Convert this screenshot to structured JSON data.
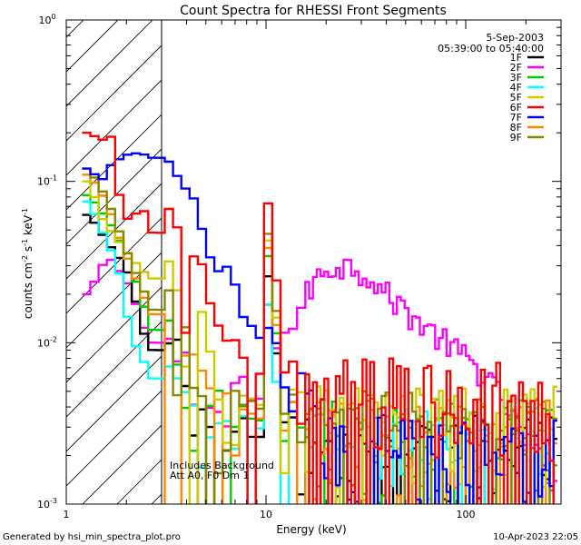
{
  "chart_data": {
    "type": "line",
    "title": "Count Spectra for RHESSI Front Segments",
    "xlabel": "Energy (keV)",
    "ylabel_parts": {
      "pre": "counts cm",
      "e1": "-2",
      "mid1": " s",
      "e2": "-1",
      "mid2": " keV",
      "e3": "-1"
    },
    "xscale": "log",
    "yscale": "log",
    "xlim": [
      1,
      300
    ],
    "ylim": [
      0.001,
      1
    ],
    "x_ticks": [
      {
        "value": 1,
        "label": "1"
      },
      {
        "value": 10,
        "label": "10"
      },
      {
        "value": 100,
        "label": "100"
      }
    ],
    "y_ticks": [
      {
        "value": 0.001,
        "mant": "10",
        "exp": "-3"
      },
      {
        "value": 0.01,
        "mant": "10",
        "exp": "-2"
      },
      {
        "value": 0.1,
        "mant": "10",
        "exp": "-1"
      },
      {
        "value": 1,
        "mant": "10",
        "exp": "0"
      }
    ],
    "hatched_region": [
      1,
      3
    ],
    "date": "5-Sep-2003",
    "time_range": "05:39:00 to 05:40:00",
    "annotations": [
      "Includes Background",
      "Att A0, F0 Dm 1"
    ],
    "series": [
      {
        "name": "1F",
        "color": "#000000",
        "low": [
          [
            1.3,
            0.062
          ],
          [
            1.5,
            0.048
          ],
          [
            1.7,
            0.038
          ],
          [
            1.9,
            0.032
          ],
          [
            2.1,
            0.025
          ],
          [
            2.4,
            0.012
          ],
          [
            2.7,
            0.009
          ]
        ],
        "noise_base": 0.002,
        "noise_floor": 0.0008
      },
      {
        "name": "2F",
        "color": "#ff00ff",
        "low": [
          [
            1.3,
            0.02
          ],
          [
            1.5,
            0.03
          ],
          [
            1.7,
            0.033
          ],
          [
            1.9,
            0.026
          ],
          [
            2.1,
            0.022
          ],
          [
            2.4,
            0.013
          ],
          [
            2.7,
            0.01
          ]
        ],
        "noise_base": 0.0035,
        "noise_floor": 0.0013
      },
      {
        "name": "3F",
        "color": "#00cc00",
        "low": [
          [
            1.3,
            0.082
          ],
          [
            1.5,
            0.065
          ],
          [
            1.7,
            0.052
          ],
          [
            1.9,
            0.04
          ],
          [
            2.1,
            0.03
          ],
          [
            2.4,
            0.018
          ],
          [
            2.7,
            0.012
          ]
        ],
        "noise_base": 0.0025,
        "noise_floor": 0.0009
      },
      {
        "name": "4F",
        "color": "#00ffff",
        "low": [
          [
            1.3,
            0.075
          ],
          [
            1.5,
            0.05
          ],
          [
            1.7,
            0.036
          ],
          [
            1.9,
            0.024
          ],
          [
            2.1,
            0.011
          ],
          [
            2.4,
            0.008
          ],
          [
            2.7,
            0.006
          ]
        ],
        "noise_base": 0.0022,
        "noise_floor": 0.0009
      },
      {
        "name": "5F",
        "color": "#cccc00",
        "low": [
          [
            1.3,
            0.1
          ],
          [
            1.5,
            0.06
          ],
          [
            1.7,
            0.048
          ],
          [
            1.9,
            0.04
          ],
          [
            2.1,
            0.034
          ],
          [
            2.4,
            0.028
          ],
          [
            2.7,
            0.025
          ]
        ],
        "noise_base": 0.003,
        "noise_floor": 0.001
      },
      {
        "name": "6F",
        "color": "#ff0000",
        "low": [
          [
            1.3,
            0.2
          ],
          [
            1.5,
            0.18
          ],
          [
            1.7,
            0.19
          ],
          [
            1.9,
            0.06
          ],
          [
            2.1,
            0.058
          ],
          [
            2.4,
            0.07
          ],
          [
            2.7,
            0.048
          ]
        ],
        "noise_base": 0.0045,
        "noise_floor": 0.0016
      },
      {
        "name": "7F",
        "color": "#0000ff",
        "low": [
          [
            1.3,
            0.12
          ],
          [
            1.5,
            0.1
          ],
          [
            1.7,
            0.13
          ],
          [
            1.9,
            0.14
          ],
          [
            2.1,
            0.15
          ],
          [
            2.4,
            0.148
          ],
          [
            2.7,
            0.14
          ]
        ],
        "noise_base": 0.002,
        "noise_floor": 0.0008
      },
      {
        "name": "8F",
        "color": "#ff8800",
        "low": [
          [
            1.3,
            0.11
          ],
          [
            1.5,
            0.085
          ],
          [
            1.7,
            0.06
          ],
          [
            1.9,
            0.04
          ],
          [
            2.1,
            0.03
          ],
          [
            2.4,
            0.02
          ],
          [
            2.7,
            0.015
          ]
        ],
        "noise_base": 0.0025,
        "noise_floor": 0.0009
      },
      {
        "name": "9F",
        "color": "#888800",
        "low": [
          [
            1.3,
            0.12
          ],
          [
            1.5,
            0.09
          ],
          [
            1.7,
            0.065
          ],
          [
            1.9,
            0.044
          ],
          [
            2.1,
            0.032
          ],
          [
            2.4,
            0.022
          ],
          [
            2.7,
            0.016
          ]
        ],
        "noise_base": 0.0028,
        "noise_floor": 0.001
      }
    ],
    "magenta_hump": [
      [
        12,
        0.01
      ],
      [
        14,
        0.014
      ],
      [
        16,
        0.02
      ],
      [
        18,
        0.025
      ],
      [
        20,
        0.029
      ],
      [
        23,
        0.03
      ],
      [
        27,
        0.03
      ],
      [
        32,
        0.027
      ],
      [
        40,
        0.02
      ],
      [
        50,
        0.016
      ],
      [
        60,
        0.013
      ],
      [
        80,
        0.01
      ],
      [
        100,
        0.008
      ],
      [
        130,
        0.006
      ],
      [
        160,
        0.004
      ],
      [
        200,
        0.0025
      ],
      [
        250,
        0.0017
      ],
      [
        290,
        0.0013
      ]
    ],
    "blue_spec": [
      [
        3,
        0.13
      ],
      [
        3.5,
        0.11
      ],
      [
        4,
        0.09
      ],
      [
        4.5,
        0.065
      ],
      [
        5,
        0.045
      ],
      [
        5.5,
        0.035
      ],
      [
        6,
        0.03
      ],
      [
        7,
        0.022
      ],
      [
        8,
        0.015
      ],
      [
        9,
        0.01
      ],
      [
        10,
        0.012
      ],
      [
        11,
        0.01
      ],
      [
        12,
        0.006
      ],
      [
        14,
        0.004
      ]
    ],
    "line_peak": {
      "energy": 10.5,
      "heights": {
        "1F": 0.03,
        "2F": 0.02,
        "3F": 0.04,
        "4F": 0.02,
        "5F": 0.05,
        "6F": 0.085,
        "7F": 0.01,
        "8F": 0.045,
        "9F": 0.055
      }
    }
  },
  "footer": {
    "generated": "Generated by hsi_min_spectra_plot.pro",
    "stamp": "10-Apr-2023 22:05"
  }
}
